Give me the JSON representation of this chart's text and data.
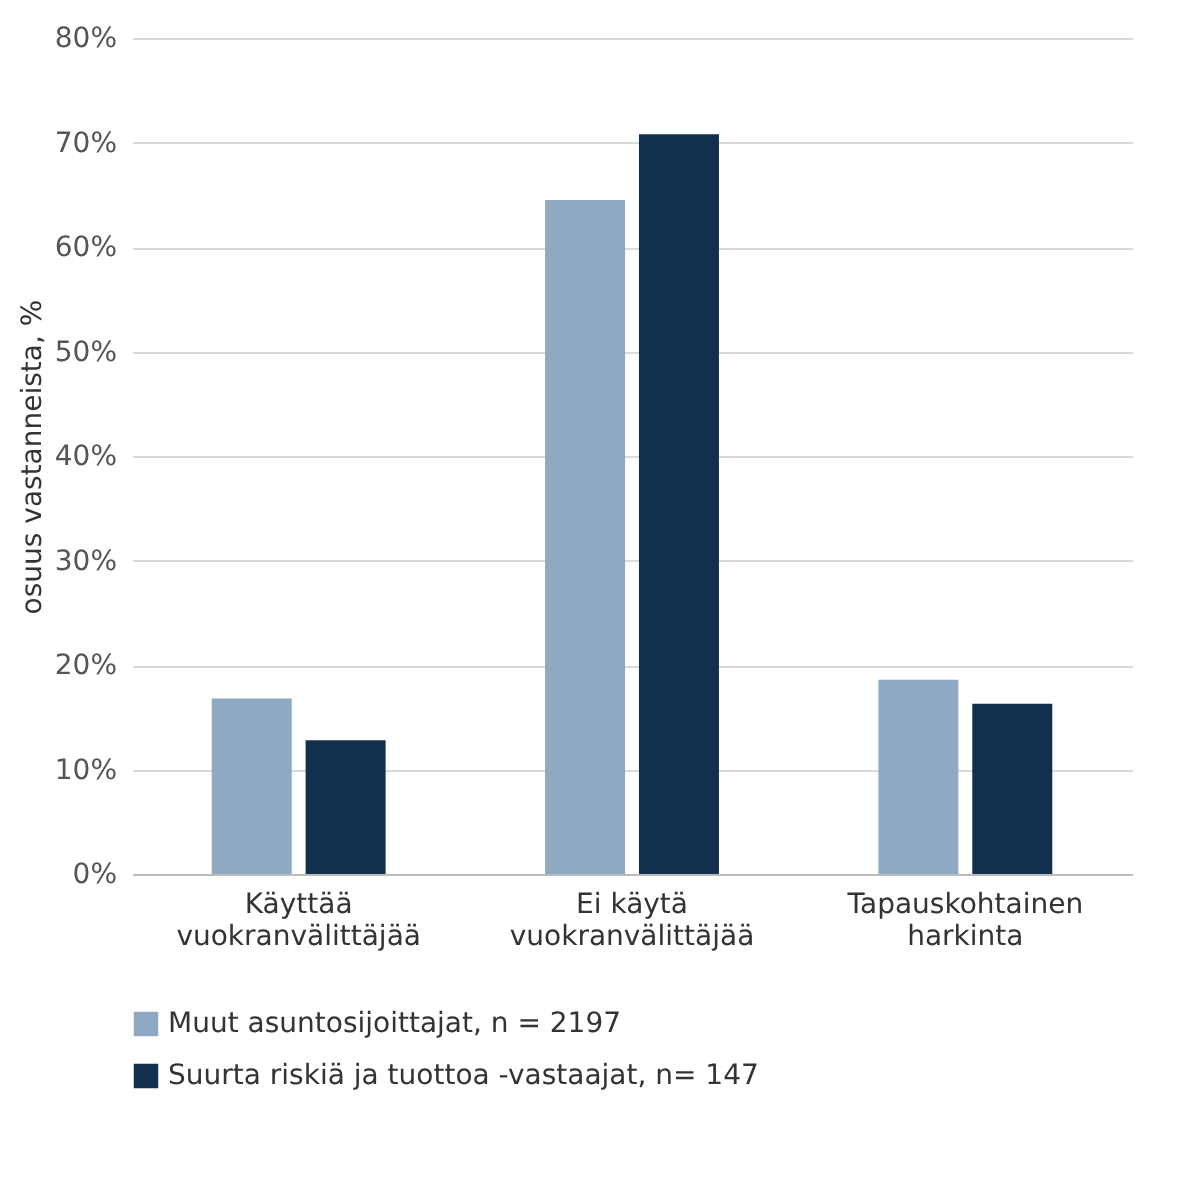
{
  "chart_data": {
    "type": "bar",
    "ylabel": "osuus vastanneista, %",
    "categories": [
      "Käyttää vuokranvälittäjää",
      "Ei käytä vuokranvälittäjää",
      "Tapauskohtainen harkinta"
    ],
    "series": [
      {
        "name": "Muut asuntosijoittajat, n = 2197",
        "color": "#8ea9c1",
        "values": [
          16.8,
          64.5,
          18.6
        ]
      },
      {
        "name": "Suurta riskiä ja tuottoa -vastaajat, n= 147",
        "color": "#12304d",
        "values": [
          12.8,
          70.8,
          16.3
        ]
      }
    ],
    "ylim": [
      0,
      80
    ],
    "yticks": [
      {
        "value": 0,
        "label": "0%"
      },
      {
        "value": 10,
        "label": "10%"
      },
      {
        "value": 20,
        "label": "20%"
      },
      {
        "value": 30,
        "label": "30%"
      },
      {
        "value": 40,
        "label": "40%"
      },
      {
        "value": 50,
        "label": "50%"
      },
      {
        "value": 60,
        "label": "60%"
      },
      {
        "value": 70,
        "label": "70%"
      },
      {
        "value": 80,
        "label": "80%"
      }
    ],
    "grid": "y",
    "legend": "bottom"
  }
}
